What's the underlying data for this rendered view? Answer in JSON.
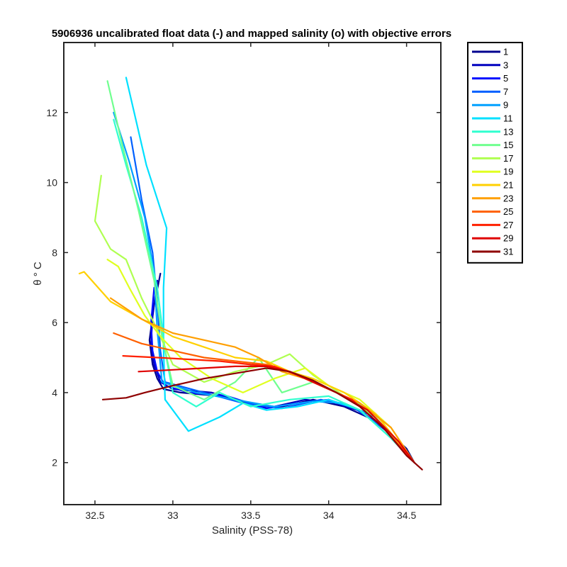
{
  "chart_data": {
    "type": "line",
    "title": "5906936 uncalibrated float data (-) and mapped salinity (o) with objective errors",
    "xlabel": "Salinity (PSS-78)",
    "ylabel": "θ ° C",
    "xlim": [
      32.3,
      34.72
    ],
    "ylim": [
      0.8,
      14.0
    ],
    "xticks": [
      32.5,
      33,
      33.5,
      34,
      34.5
    ],
    "xtick_labels": [
      "32.5",
      "33",
      "33.5",
      "34",
      "34.5"
    ],
    "yticks": [
      2,
      4,
      6,
      8,
      10,
      12
    ],
    "ytick_labels": [
      "2",
      "4",
      "6",
      "8",
      "10",
      "12"
    ],
    "grid": false,
    "legend_placement": "outside-top-right",
    "legend": [
      {
        "name": "1",
        "color": "#00008F"
      },
      {
        "name": "3",
        "color": "#0000BF"
      },
      {
        "name": "5",
        "color": "#0010FF"
      },
      {
        "name": "7",
        "color": "#0060FF"
      },
      {
        "name": "9",
        "color": "#00A0FF"
      },
      {
        "name": "11",
        "color": "#00E0FF"
      },
      {
        "name": "13",
        "color": "#30FFCF"
      },
      {
        "name": "15",
        "color": "#70FF8F"
      },
      {
        "name": "17",
        "color": "#AFFF50"
      },
      {
        "name": "19",
        "color": "#E0FF20"
      },
      {
        "name": "21",
        "color": "#FFD000"
      },
      {
        "name": "23",
        "color": "#FF9F00"
      },
      {
        "name": "25",
        "color": "#FF6000"
      },
      {
        "name": "27",
        "color": "#FF2000"
      },
      {
        "name": "29",
        "color": "#DF0000"
      },
      {
        "name": "31",
        "color": "#8F0000"
      }
    ],
    "series": [
      {
        "name": "1",
        "color": "#00008F",
        "x": [
          32.92,
          32.88,
          32.85,
          32.87,
          32.9,
          32.94,
          33.05,
          33.3,
          33.55,
          33.7,
          33.9,
          34.1,
          34.3,
          34.5,
          34.55
        ],
        "y": [
          7.4,
          6.5,
          5.5,
          4.8,
          4.4,
          4.1,
          4.0,
          3.9,
          3.6,
          3.6,
          3.8,
          3.6,
          3.2,
          2.4,
          2.0
        ]
      },
      {
        "name": "3",
        "color": "#0000BF",
        "x": [
          32.9,
          32.87,
          32.86,
          32.88,
          32.92,
          33.0,
          33.25,
          33.5,
          33.65,
          33.85,
          34.05,
          34.25,
          34.45,
          34.55
        ],
        "y": [
          7.2,
          6.2,
          5.4,
          4.8,
          4.3,
          4.1,
          4.0,
          3.7,
          3.6,
          3.8,
          3.7,
          3.4,
          2.6,
          2.0
        ]
      },
      {
        "name": "5",
        "color": "#0010FF",
        "x": [
          32.88,
          32.86,
          32.87,
          32.9,
          32.95,
          33.1,
          33.35,
          33.6,
          33.8,
          34.0,
          34.2,
          34.4,
          34.55
        ],
        "y": [
          7.0,
          6.0,
          5.2,
          4.6,
          4.2,
          4.0,
          3.9,
          3.55,
          3.7,
          3.8,
          3.5,
          2.8,
          2.0
        ]
      },
      {
        "name": "7",
        "color": "#0060FF",
        "x": [
          32.73,
          32.8,
          32.87,
          32.9,
          32.92,
          32.95,
          33.2,
          33.45,
          33.7,
          33.95,
          34.15,
          34.35,
          34.55
        ],
        "y": [
          11.3,
          9.5,
          8.0,
          6.6,
          5.2,
          4.3,
          4.0,
          3.7,
          3.55,
          3.8,
          3.6,
          3.0,
          2.0
        ]
      },
      {
        "name": "9",
        "color": "#00A0FF",
        "x": [
          32.62,
          32.72,
          32.82,
          32.88,
          32.9,
          32.93,
          33.15,
          33.4,
          33.65,
          33.9,
          34.1,
          34.3,
          34.55
        ],
        "y": [
          12.0,
          10.6,
          9.0,
          7.4,
          5.8,
          4.3,
          4.0,
          3.8,
          3.6,
          3.75,
          3.7,
          3.3,
          2.0
        ]
      },
      {
        "name": "11",
        "color": "#00E0FF",
        "x": [
          32.7,
          32.83,
          32.96,
          32.94,
          32.94,
          32.95,
          33.1,
          33.3,
          33.45,
          33.6,
          33.8,
          34.0,
          34.2,
          34.4,
          34.55
        ],
        "y": [
          13.0,
          10.5,
          8.7,
          7.0,
          5.3,
          3.8,
          2.9,
          3.3,
          3.7,
          3.5,
          3.6,
          3.8,
          3.5,
          2.7,
          2.0
        ]
      },
      {
        "name": "13",
        "color": "#30FFCF",
        "x": [
          32.62,
          32.7,
          32.8,
          32.9,
          32.95,
          33.0,
          33.15,
          33.3,
          33.5,
          33.75,
          34.0,
          34.2,
          34.4,
          34.55
        ],
        "y": [
          11.8,
          10.5,
          9.0,
          7.0,
          5.2,
          4.0,
          3.6,
          4.0,
          3.6,
          3.8,
          3.9,
          3.5,
          2.7,
          2.0
        ]
      },
      {
        "name": "15",
        "color": "#70FF8F",
        "x": [
          32.58,
          32.68,
          32.78,
          32.88,
          32.93,
          33.0,
          33.2,
          33.4,
          33.55,
          33.7,
          33.9,
          34.1,
          34.3,
          34.55
        ],
        "y": [
          12.9,
          11.0,
          9.2,
          7.2,
          5.6,
          4.2,
          3.8,
          4.3,
          5.0,
          4.0,
          4.3,
          3.9,
          3.4,
          2.0
        ]
      },
      {
        "name": "17",
        "color": "#AFFF50",
        "x": [
          32.54,
          32.5,
          32.6,
          32.7,
          32.8,
          32.9,
          33.0,
          33.2,
          33.4,
          33.6,
          33.75,
          33.9,
          34.1,
          34.3,
          34.55
        ],
        "y": [
          10.2,
          8.9,
          8.1,
          7.8,
          6.7,
          5.8,
          4.8,
          4.3,
          4.6,
          4.8,
          5.1,
          4.5,
          3.9,
          3.3,
          2.0
        ]
      },
      {
        "name": "19",
        "color": "#E0FF20",
        "x": [
          32.58,
          32.65,
          32.72,
          32.82,
          32.92,
          33.05,
          33.25,
          33.45,
          33.65,
          33.85,
          34.0,
          34.2,
          34.4,
          34.55
        ],
        "y": [
          7.8,
          7.6,
          7.0,
          6.2,
          5.6,
          5.0,
          4.4,
          4.0,
          4.4,
          4.7,
          4.2,
          3.8,
          3.0,
          2.0
        ]
      },
      {
        "name": "21",
        "color": "#FFD000",
        "x": [
          32.4,
          32.43,
          32.6,
          32.8,
          33.0,
          33.2,
          33.4,
          33.6,
          33.75,
          33.9,
          34.1,
          34.3,
          34.55
        ],
        "y": [
          7.4,
          7.45,
          6.6,
          6.1,
          5.6,
          5.3,
          5.0,
          4.9,
          4.6,
          4.4,
          4.0,
          3.4,
          2.0
        ]
      },
      {
        "name": "23",
        "color": "#FF9F00",
        "x": [
          32.6,
          32.8,
          33.0,
          33.2,
          33.4,
          33.55,
          33.7,
          33.85,
          34.0,
          34.2,
          34.4,
          34.55
        ],
        "y": [
          6.7,
          6.1,
          5.7,
          5.5,
          5.3,
          5.0,
          4.6,
          4.4,
          4.1,
          3.7,
          3.0,
          2.0
        ]
      },
      {
        "name": "25",
        "color": "#FF6000",
        "x": [
          32.62,
          32.8,
          33.0,
          33.2,
          33.4,
          33.6,
          33.75,
          33.9,
          34.05,
          34.25,
          34.45,
          34.55
        ],
        "y": [
          5.7,
          5.4,
          5.2,
          5.0,
          4.9,
          4.8,
          4.6,
          4.3,
          4.0,
          3.5,
          2.6,
          2.0
        ]
      },
      {
        "name": "27",
        "color": "#FF2000",
        "x": [
          32.68,
          32.9,
          33.1,
          33.3,
          33.5,
          33.65,
          33.8,
          33.95,
          34.15,
          34.35,
          34.55
        ],
        "y": [
          5.05,
          5.0,
          4.95,
          4.9,
          4.8,
          4.75,
          4.5,
          4.2,
          3.8,
          3.0,
          2.0
        ]
      },
      {
        "name": "29",
        "color": "#DF0000",
        "x": [
          32.78,
          33.0,
          33.2,
          33.4,
          33.6,
          33.75,
          33.9,
          34.05,
          34.25,
          34.45,
          34.55
        ],
        "y": [
          4.6,
          4.65,
          4.7,
          4.75,
          4.75,
          4.6,
          4.3,
          4.0,
          3.5,
          2.6,
          2.0
        ]
      },
      {
        "name": "31",
        "color": "#8F0000",
        "x": [
          32.55,
          32.7,
          32.82,
          33.0,
          33.2,
          33.4,
          33.6,
          33.75,
          33.9,
          34.05,
          34.2,
          34.35,
          34.5,
          34.6
        ],
        "y": [
          3.8,
          3.85,
          4.0,
          4.2,
          4.4,
          4.55,
          4.7,
          4.6,
          4.35,
          4.0,
          3.6,
          3.0,
          2.2,
          1.8
        ]
      }
    ]
  }
}
